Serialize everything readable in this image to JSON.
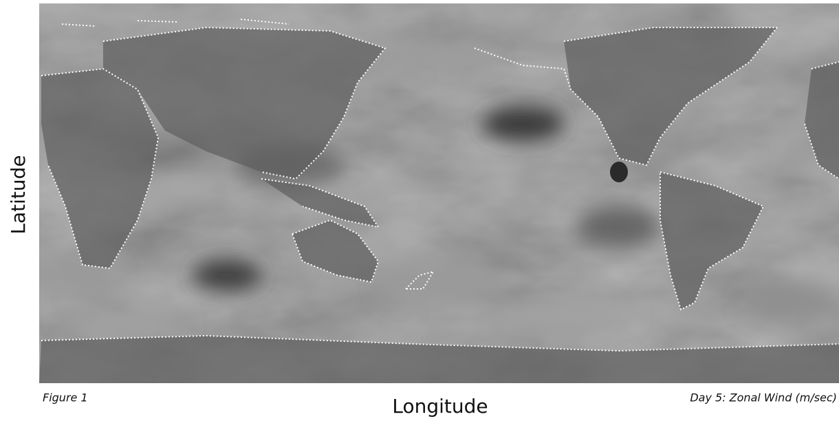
{
  "axes": {
    "y_label": "Latitude",
    "x_label": "Longitude"
  },
  "caption": {
    "figure": "Figure 1",
    "description": "Day 5: Zonal Wind (m/sec)"
  }
}
